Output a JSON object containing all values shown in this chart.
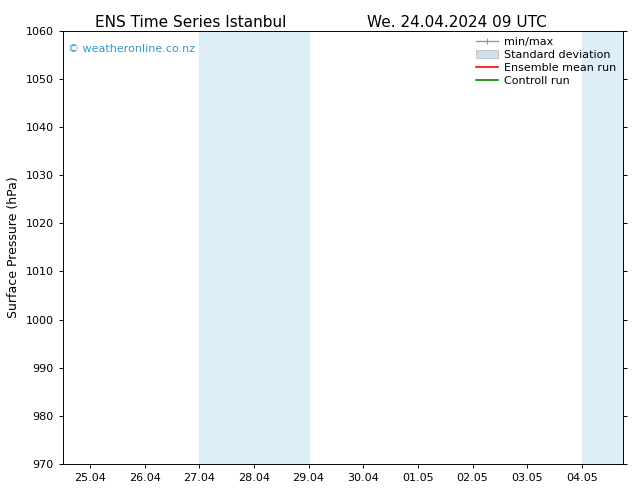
{
  "title_left": "ENS Time Series Istanbul",
  "title_right": "We. 24.04.2024 09 UTC",
  "ylabel": "Surface Pressure (hPa)",
  "ylim": [
    970,
    1060
  ],
  "yticks": [
    970,
    980,
    990,
    1000,
    1010,
    1020,
    1030,
    1040,
    1050,
    1060
  ],
  "xtick_labels": [
    "25.04",
    "26.04",
    "27.04",
    "28.04",
    "29.04",
    "30.04",
    "01.05",
    "02.05",
    "03.05",
    "04.05"
  ],
  "xtick_positions": [
    0,
    1,
    2,
    3,
    4,
    5,
    6,
    7,
    8,
    9
  ],
  "x_min": -0.5,
  "x_max": 9.75,
  "shaded_regions": [
    {
      "x_start": 2.0,
      "x_end": 4.0,
      "color": "#ddeef8"
    },
    {
      "x_start": 9.0,
      "x_end": 9.75,
      "color": "#ddeef8"
    }
  ],
  "watermark_text": "© weatheronline.co.nz",
  "watermark_color": "#3399cc",
  "background_color": "#ffffff",
  "legend_items": [
    {
      "label": "min/max",
      "color": "#999999",
      "type": "minmax"
    },
    {
      "label": "Standard deviation",
      "color": "#cce0f0",
      "type": "band"
    },
    {
      "label": "Ensemble mean run",
      "color": "#ff0000",
      "type": "line"
    },
    {
      "label": "Controll run",
      "color": "#008800",
      "type": "line"
    }
  ],
  "title_fontsize": 11,
  "tick_fontsize": 8,
  "ylabel_fontsize": 9,
  "watermark_fontsize": 8,
  "legend_fontsize": 8,
  "fig_width": 6.34,
  "fig_height": 4.9,
  "dpi": 100
}
